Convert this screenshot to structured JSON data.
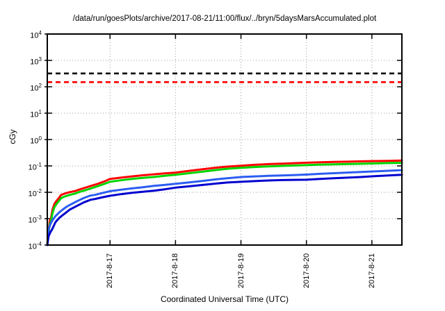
{
  "title": "/data/run/goesPlots/archive/2017-08-21/11:00/flux/../bryn/5daysMarsAccumulated.plot",
  "chart_data": {
    "type": "line",
    "title": "/data/run/goesPlots/archive/2017-08-21/11:00/flux/../bryn/5daysMarsAccumulated.plot",
    "xlabel": "Coordinated Universal Time (UTC)",
    "ylabel": "cGy",
    "y_scale": "log10",
    "ylim": [
      0.0001,
      10000
    ],
    "y_tick_exponents": [
      4,
      3,
      2,
      1,
      0,
      -1,
      -2,
      -3,
      -4
    ],
    "grid": true,
    "legend": "none",
    "x_span_hours": 130,
    "x_ticks": [
      {
        "label": "2017-8-17",
        "hours": 23
      },
      {
        "label": "2017-8-18",
        "hours": 47
      },
      {
        "label": "2017-8-19",
        "hours": 71
      },
      {
        "label": "2017-8-20",
        "hours": 95
      },
      {
        "label": "2017-8-21",
        "hours": 119
      }
    ],
    "thresholds": [
      {
        "name": "upper-dose-limit-line",
        "value_cGy": 320,
        "color": "#000000",
        "style": "dashed"
      },
      {
        "name": "lower-dose-limit-line",
        "value_cGy": 150,
        "color": "#ff0000",
        "style": "dashed"
      }
    ],
    "series": [
      {
        "name": "accumulated-dose-red",
        "color": "#ff0000",
        "points": [
          [
            0,
            0.0001
          ],
          [
            0.4,
            0.0003
          ],
          [
            0.9,
            0.0008
          ],
          [
            1.4,
            0.0011
          ],
          [
            1.9,
            0.0022
          ],
          [
            2.6,
            0.0036
          ],
          [
            3.3,
            0.0046
          ],
          [
            4.2,
            0.006
          ],
          [
            5.1,
            0.008
          ],
          [
            6.5,
            0.009
          ],
          [
            8,
            0.01
          ],
          [
            10,
            0.011
          ],
          [
            12,
            0.013
          ],
          [
            14,
            0.015
          ],
          [
            16,
            0.0175
          ],
          [
            18.5,
            0.021
          ],
          [
            21,
            0.026
          ],
          [
            23,
            0.032
          ],
          [
            27,
            0.036
          ],
          [
            31,
            0.04
          ],
          [
            35,
            0.044
          ],
          [
            39,
            0.048
          ],
          [
            43,
            0.052
          ],
          [
            47,
            0.056
          ],
          [
            52,
            0.065
          ],
          [
            57,
            0.075
          ],
          [
            62,
            0.086
          ],
          [
            66,
            0.094
          ],
          [
            71,
            0.101
          ],
          [
            76,
            0.11
          ],
          [
            81,
            0.117
          ],
          [
            86,
            0.122
          ],
          [
            90,
            0.127
          ],
          [
            95,
            0.132
          ],
          [
            100,
            0.137
          ],
          [
            105,
            0.141
          ],
          [
            110,
            0.145
          ],
          [
            115,
            0.149
          ],
          [
            120,
            0.153
          ],
          [
            125,
            0.156
          ],
          [
            130,
            0.16
          ]
        ]
      },
      {
        "name": "accumulated-dose-green",
        "color": "#00d400",
        "points": [
          [
            0,
            0.0001
          ],
          [
            0.4,
            0.00025
          ],
          [
            0.9,
            0.0006
          ],
          [
            1.4,
            0.00085
          ],
          [
            1.9,
            0.0016
          ],
          [
            2.6,
            0.0027
          ],
          [
            3.3,
            0.0035
          ],
          [
            4.2,
            0.0046
          ],
          [
            5.1,
            0.006
          ],
          [
            6.5,
            0.007
          ],
          [
            8,
            0.0078
          ],
          [
            10,
            0.0088
          ],
          [
            12,
            0.0105
          ],
          [
            14,
            0.012
          ],
          [
            16,
            0.014
          ],
          [
            18.5,
            0.017
          ],
          [
            21,
            0.021
          ],
          [
            23,
            0.025
          ],
          [
            27,
            0.0285
          ],
          [
            31,
            0.032
          ],
          [
            35,
            0.035
          ],
          [
            39,
            0.038
          ],
          [
            43,
            0.042
          ],
          [
            47,
            0.046
          ],
          [
            52,
            0.053
          ],
          [
            57,
            0.061
          ],
          [
            62,
            0.07
          ],
          [
            66,
            0.078
          ],
          [
            71,
            0.085
          ],
          [
            76,
            0.091
          ],
          [
            81,
            0.096
          ],
          [
            86,
            0.1
          ],
          [
            90,
            0.103
          ],
          [
            95,
            0.107
          ],
          [
            100,
            0.112
          ],
          [
            105,
            0.115
          ],
          [
            110,
            0.118
          ],
          [
            115,
            0.121
          ],
          [
            120,
            0.124
          ],
          [
            125,
            0.128
          ],
          [
            130,
            0.131
          ]
        ]
      },
      {
        "name": "accumulated-dose-lightblue",
        "color": "#2b5df2",
        "points": [
          [
            0,
            0.0001
          ],
          [
            0.5,
            0.0004
          ],
          [
            1.1,
            0.0006
          ],
          [
            1.8,
            0.00085
          ],
          [
            3,
            0.00125
          ],
          [
            4.3,
            0.0017
          ],
          [
            5.6,
            0.0022
          ],
          [
            7,
            0.0028
          ],
          [
            8.2,
            0.0033
          ],
          [
            10.7,
            0.0045
          ],
          [
            13.3,
            0.006
          ],
          [
            15.8,
            0.0075
          ],
          [
            17.5,
            0.008
          ],
          [
            20,
            0.0093
          ],
          [
            23,
            0.011
          ],
          [
            27,
            0.0125
          ],
          [
            31,
            0.014
          ],
          [
            35,
            0.0155
          ],
          [
            39,
            0.0175
          ],
          [
            43,
            0.019
          ],
          [
            47,
            0.021
          ],
          [
            52,
            0.0238
          ],
          [
            57,
            0.027
          ],
          [
            62,
            0.031
          ],
          [
            66,
            0.034
          ],
          [
            71,
            0.038
          ],
          [
            76,
            0.04
          ],
          [
            81,
            0.042
          ],
          [
            86,
            0.0435
          ],
          [
            90,
            0.045
          ],
          [
            95,
            0.047
          ],
          [
            100,
            0.05
          ],
          [
            105,
            0.053
          ],
          [
            110,
            0.056
          ],
          [
            115,
            0.059
          ],
          [
            120,
            0.062
          ],
          [
            125,
            0.0655
          ],
          [
            130,
            0.069
          ]
        ]
      },
      {
        "name": "accumulated-dose-blue",
        "color": "#0000cf",
        "points": [
          [
            0,
            0.0001
          ],
          [
            0.5,
            0.00022
          ],
          [
            1.1,
            0.0003
          ],
          [
            1.8,
            0.0004
          ],
          [
            3,
            0.00074
          ],
          [
            4.3,
            0.00105
          ],
          [
            5.6,
            0.00135
          ],
          [
            7,
            0.00175
          ],
          [
            8.2,
            0.0022
          ],
          [
            10.7,
            0.003
          ],
          [
            13.3,
            0.0041
          ],
          [
            15.8,
            0.0052
          ],
          [
            17.5,
            0.0056
          ],
          [
            20,
            0.0064
          ],
          [
            23,
            0.0074
          ],
          [
            27,
            0.0085
          ],
          [
            31,
            0.0095
          ],
          [
            35,
            0.0105
          ],
          [
            39,
            0.0115
          ],
          [
            43,
            0.013
          ],
          [
            47,
            0.015
          ],
          [
            52,
            0.0168
          ],
          [
            57,
            0.019
          ],
          [
            62,
            0.0215
          ],
          [
            66,
            0.0235
          ],
          [
            71,
            0.025
          ],
          [
            76,
            0.0265
          ],
          [
            81,
            0.028
          ],
          [
            86,
            0.029
          ],
          [
            90,
            0.0295
          ],
          [
            95,
            0.03
          ],
          [
            100,
            0.032
          ],
          [
            105,
            0.034
          ],
          [
            110,
            0.036
          ],
          [
            115,
            0.038
          ],
          [
            120,
            0.041
          ],
          [
            125,
            0.0435
          ],
          [
            130,
            0.046
          ]
        ]
      }
    ]
  }
}
